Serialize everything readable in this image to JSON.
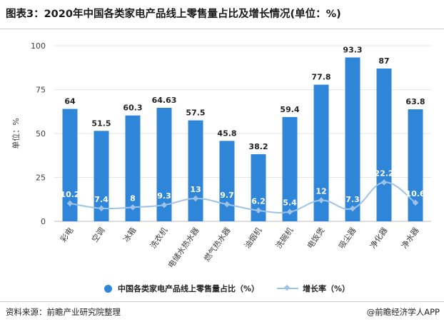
{
  "header": {
    "title": "图表3：2020年中国各类家电产品线上零售量占比及增长情况(单位：%)"
  },
  "footer": {
    "source": "资料来源：前瞻产业研究院整理",
    "brand": "@前瞻经济学人APP"
  },
  "colors": {
    "bar": "#2f86d8",
    "line": "#9fc3e6",
    "grid": "#e6e6e6",
    "axis_text": "#404040"
  },
  "chart_data": {
    "type": "bar",
    "categories": [
      "彩电",
      "空调",
      "冰箱",
      "洗衣机",
      "电储水热水器",
      "燃气热水器",
      "油烟机",
      "洗碗机",
      "电饭煲",
      "吸尘器",
      "净化器",
      "净水器"
    ],
    "series": [
      {
        "name": "中国各类家电产品线上零售量占比（%）",
        "type": "bar",
        "values": [
          64,
          51.5,
          60.3,
          64.63,
          57.5,
          45.8,
          38.2,
          59.4,
          77.8,
          93.3,
          87,
          63.8
        ],
        "labels": [
          "64",
          "51.5",
          "60.3",
          "64.63",
          "57.5",
          "45.8",
          "38.2",
          "59.4",
          "77.8",
          "93.3",
          "87",
          "63.8"
        ]
      },
      {
        "name": "增长率（%）",
        "type": "line",
        "values": [
          10.2,
          7.4,
          8,
          9.3,
          13,
          9.7,
          6.2,
          5.4,
          12,
          7.3,
          22.2,
          10.6
        ],
        "labels": [
          "10.2",
          "7.4",
          "8",
          "9.3",
          "13",
          "9.7",
          "6.2",
          "5.4",
          "12",
          "7.3",
          "22.2",
          "10.6"
        ]
      }
    ],
    "ylabel": "单位：%",
    "ylim": [
      0,
      100
    ],
    "yticks": [
      "0",
      "25",
      "50",
      "75",
      "100"
    ],
    "grid": true,
    "legend_position": "bottom"
  }
}
